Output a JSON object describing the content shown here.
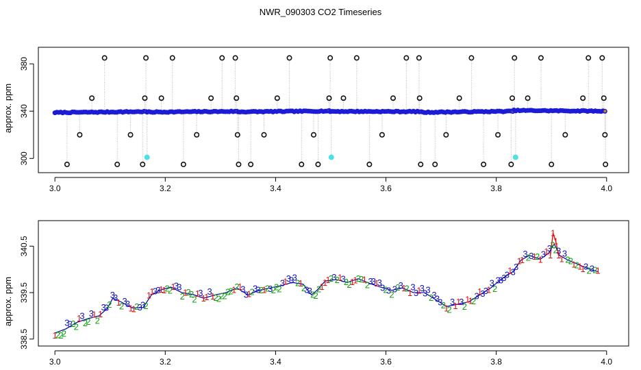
{
  "figure": {
    "title": "NWR_090303  CO2 Timeseries"
  },
  "colors": {
    "frame": "#000000",
    "grid_line": "#b8b8b8",
    "point_edge": "#111111",
    "point_fill": "#1c1cd6",
    "outlier_cyan": "#4fe0e0",
    "series_1": "#e01010",
    "series_2": "#10a010",
    "series_3": "#1010c0",
    "trend_line": "#0000a0"
  },
  "chart_data": [
    {
      "type": "scatter",
      "title": "NWR_090303  CO2 Timeseries",
      "xlabel": "",
      "ylabel": "approx. ppm",
      "xlim": [
        2.97,
        4.04
      ],
      "ylim": [
        288,
        394
      ],
      "xticks": [
        3.0,
        3.2,
        3.4,
        3.6,
        3.8,
        4.0
      ],
      "xtick_labels": [
        "3.0",
        "3.2",
        "3.4",
        "3.6",
        "3.8",
        "4.0"
      ],
      "yticks": [
        300,
        340,
        380
      ],
      "ytick_labels": [
        "300",
        "340",
        "380"
      ],
      "baseline_segments": [
        {
          "x": [
            3.0,
            3.165
          ],
          "y": [
            338.8,
            339.6
          ]
        },
        {
          "x": [
            3.167,
            3.33
          ],
          "y": [
            339.2,
            339.8
          ]
        },
        {
          "x": [
            3.332,
            3.497
          ],
          "y": [
            339.4,
            340.1
          ]
        },
        {
          "x": [
            3.499,
            3.664
          ],
          "y": [
            339.8,
            339.6
          ]
        },
        {
          "x": [
            3.666,
            3.83
          ],
          "y": [
            339.0,
            339.9
          ]
        },
        {
          "x": [
            3.832,
            3.997
          ],
          "y": [
            340.6,
            340.0
          ]
        }
      ],
      "high_points": {
        "x": [
          3.09,
          3.165,
          3.213,
          3.303,
          3.327,
          3.425,
          3.499,
          3.547,
          3.637,
          3.66,
          3.755,
          3.833,
          3.881,
          3.967,
          3.992
        ],
        "y": [
          385,
          385,
          385,
          385,
          385,
          385,
          385,
          385,
          385,
          385,
          385,
          385,
          385,
          385,
          385
        ]
      },
      "mid_high_points": {
        "x": [
          3.067,
          3.163,
          3.193,
          3.283,
          3.329,
          3.403,
          3.497,
          3.523,
          3.613,
          3.661,
          3.733,
          3.829,
          3.857,
          3.957,
          3.995
        ],
        "y": [
          351,
          351,
          351,
          351,
          351,
          351,
          351,
          351,
          351,
          351,
          351,
          351,
          351,
          351,
          351
        ]
      },
      "mid_low_points": {
        "x": [
          3.045,
          3.137,
          3.257,
          3.331,
          3.379,
          3.469,
          3.593,
          3.709,
          3.803,
          3.925,
          3.997
        ],
        "y": [
          320,
          320,
          320,
          320,
          320,
          320,
          320,
          320,
          320,
          320,
          320
        ]
      },
      "low_points": {
        "x": [
          3.022,
          3.113,
          3.159,
          3.233,
          3.333,
          3.355,
          3.447,
          3.477,
          3.57,
          3.663,
          3.689,
          3.777,
          3.827,
          3.9,
          3.998
        ],
        "y": [
          295,
          295,
          295,
          295,
          295,
          295,
          295,
          295,
          295,
          295,
          295,
          295,
          295,
          295,
          295
        ]
      },
      "flagged_points": {
        "x": [
          3.167,
          3.501,
          3.835
        ],
        "y": [
          301,
          301,
          301
        ]
      }
    },
    {
      "type": "scatter",
      "title": "",
      "xlabel": "",
      "ylabel": "approx. ppm",
      "xlim": [
        2.97,
        4.04
      ],
      "ylim": [
        338.35,
        341.05
      ],
      "xticks": [
        3.0,
        3.2,
        3.4,
        3.6,
        3.8,
        4.0
      ],
      "xtick_labels": [
        "3.0",
        "3.2",
        "3.4",
        "3.6",
        "3.8",
        "4.0"
      ],
      "yticks": [
        338.5,
        339.5,
        340.5
      ],
      "ytick_labels": [
        "338.5",
        "339.5",
        "340.5"
      ],
      "marker_labels": [
        "1",
        "2",
        "3"
      ],
      "trend": {
        "x": [
          3.0,
          3.02,
          3.04,
          3.06,
          3.08,
          3.095,
          3.105,
          3.12,
          3.14,
          3.16,
          3.175,
          3.19,
          3.21,
          3.23,
          3.25,
          3.27,
          3.29,
          3.31,
          3.33,
          3.35,
          3.37,
          3.39,
          3.41,
          3.43,
          3.45,
          3.465,
          3.475,
          3.49,
          3.51,
          3.53,
          3.55,
          3.57,
          3.59,
          3.61,
          3.63,
          3.65,
          3.67,
          3.69,
          3.71,
          3.73,
          3.75,
          3.77,
          3.79,
          3.81,
          3.83,
          3.845,
          3.86,
          3.88,
          3.895,
          3.905,
          3.915,
          3.93,
          3.95,
          3.97,
          3.985
        ],
        "y": [
          338.63,
          338.72,
          338.86,
          338.94,
          339.0,
          339.16,
          339.38,
          339.3,
          339.17,
          339.18,
          339.45,
          339.55,
          339.62,
          339.5,
          339.46,
          339.38,
          339.45,
          339.5,
          339.6,
          339.45,
          339.55,
          339.6,
          339.65,
          339.72,
          339.68,
          339.45,
          339.55,
          339.75,
          339.78,
          339.72,
          339.8,
          339.7,
          339.62,
          339.55,
          339.6,
          339.5,
          339.5,
          339.35,
          339.2,
          339.25,
          339.3,
          339.45,
          339.6,
          339.8,
          339.95,
          340.2,
          340.3,
          340.22,
          340.35,
          340.55,
          340.3,
          340.2,
          340.1,
          340.0,
          339.95
        ]
      },
      "spike": {
        "x": [
          3.898,
          3.903,
          3.908,
          3.913
        ],
        "y": [
          340.3,
          340.78,
          340.6,
          340.3
        ]
      }
    }
  ]
}
